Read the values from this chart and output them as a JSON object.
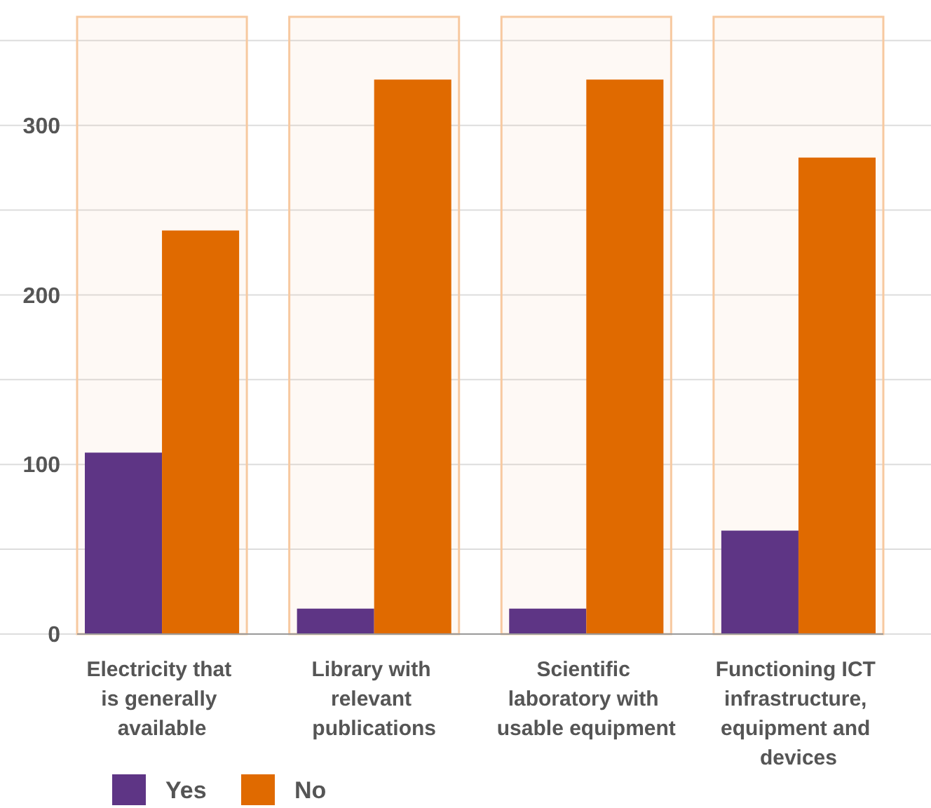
{
  "chart_data": {
    "type": "bar",
    "categories": [
      "Electricity that is generally available",
      "Library with relevant publications",
      "Scientific laboratory with usable equipment",
      "Functioning ICT infrastructure, equipment and devices"
    ],
    "series": [
      {
        "name": "Yes",
        "color": "#5e3585",
        "values": [
          107,
          15,
          15,
          61
        ]
      },
      {
        "name": "No",
        "color": "#e06a00",
        "values": [
          238,
          327,
          327,
          281
        ]
      }
    ],
    "ylim": [
      0,
      364
    ],
    "yticks": [
      0,
      {
        "value": 50,
        "label": null
      },
      100,
      {
        "value": 150,
        "label": null
      },
      200,
      {
        "value": 250,
        "label": null
      },
      300,
      {
        "value": 350,
        "label": null
      }
    ],
    "bands": [
      {
        "axis": "x",
        "from": "Electricity that is generally available",
        "to": "Electricity that is generally available",
        "color": "#f7c9a0"
      },
      {
        "axis": "x",
        "from": "Library with relevant publications",
        "to": "Library with relevant publications",
        "color": "#f7c9a0"
      },
      {
        "axis": "x",
        "from": "Scientific laboratory with usable equipment",
        "to": "Scientific laboratory with usable equipment",
        "color": "#f7c9a0"
      },
      {
        "axis": "x",
        "from": "Functioning ICT infrastructure, equipment and devices",
        "to": "Functioning ICT infrastructure, equipment and devices",
        "color": "#f7c9a0"
      }
    ],
    "grid": true,
    "legend": "bottom left"
  }
}
